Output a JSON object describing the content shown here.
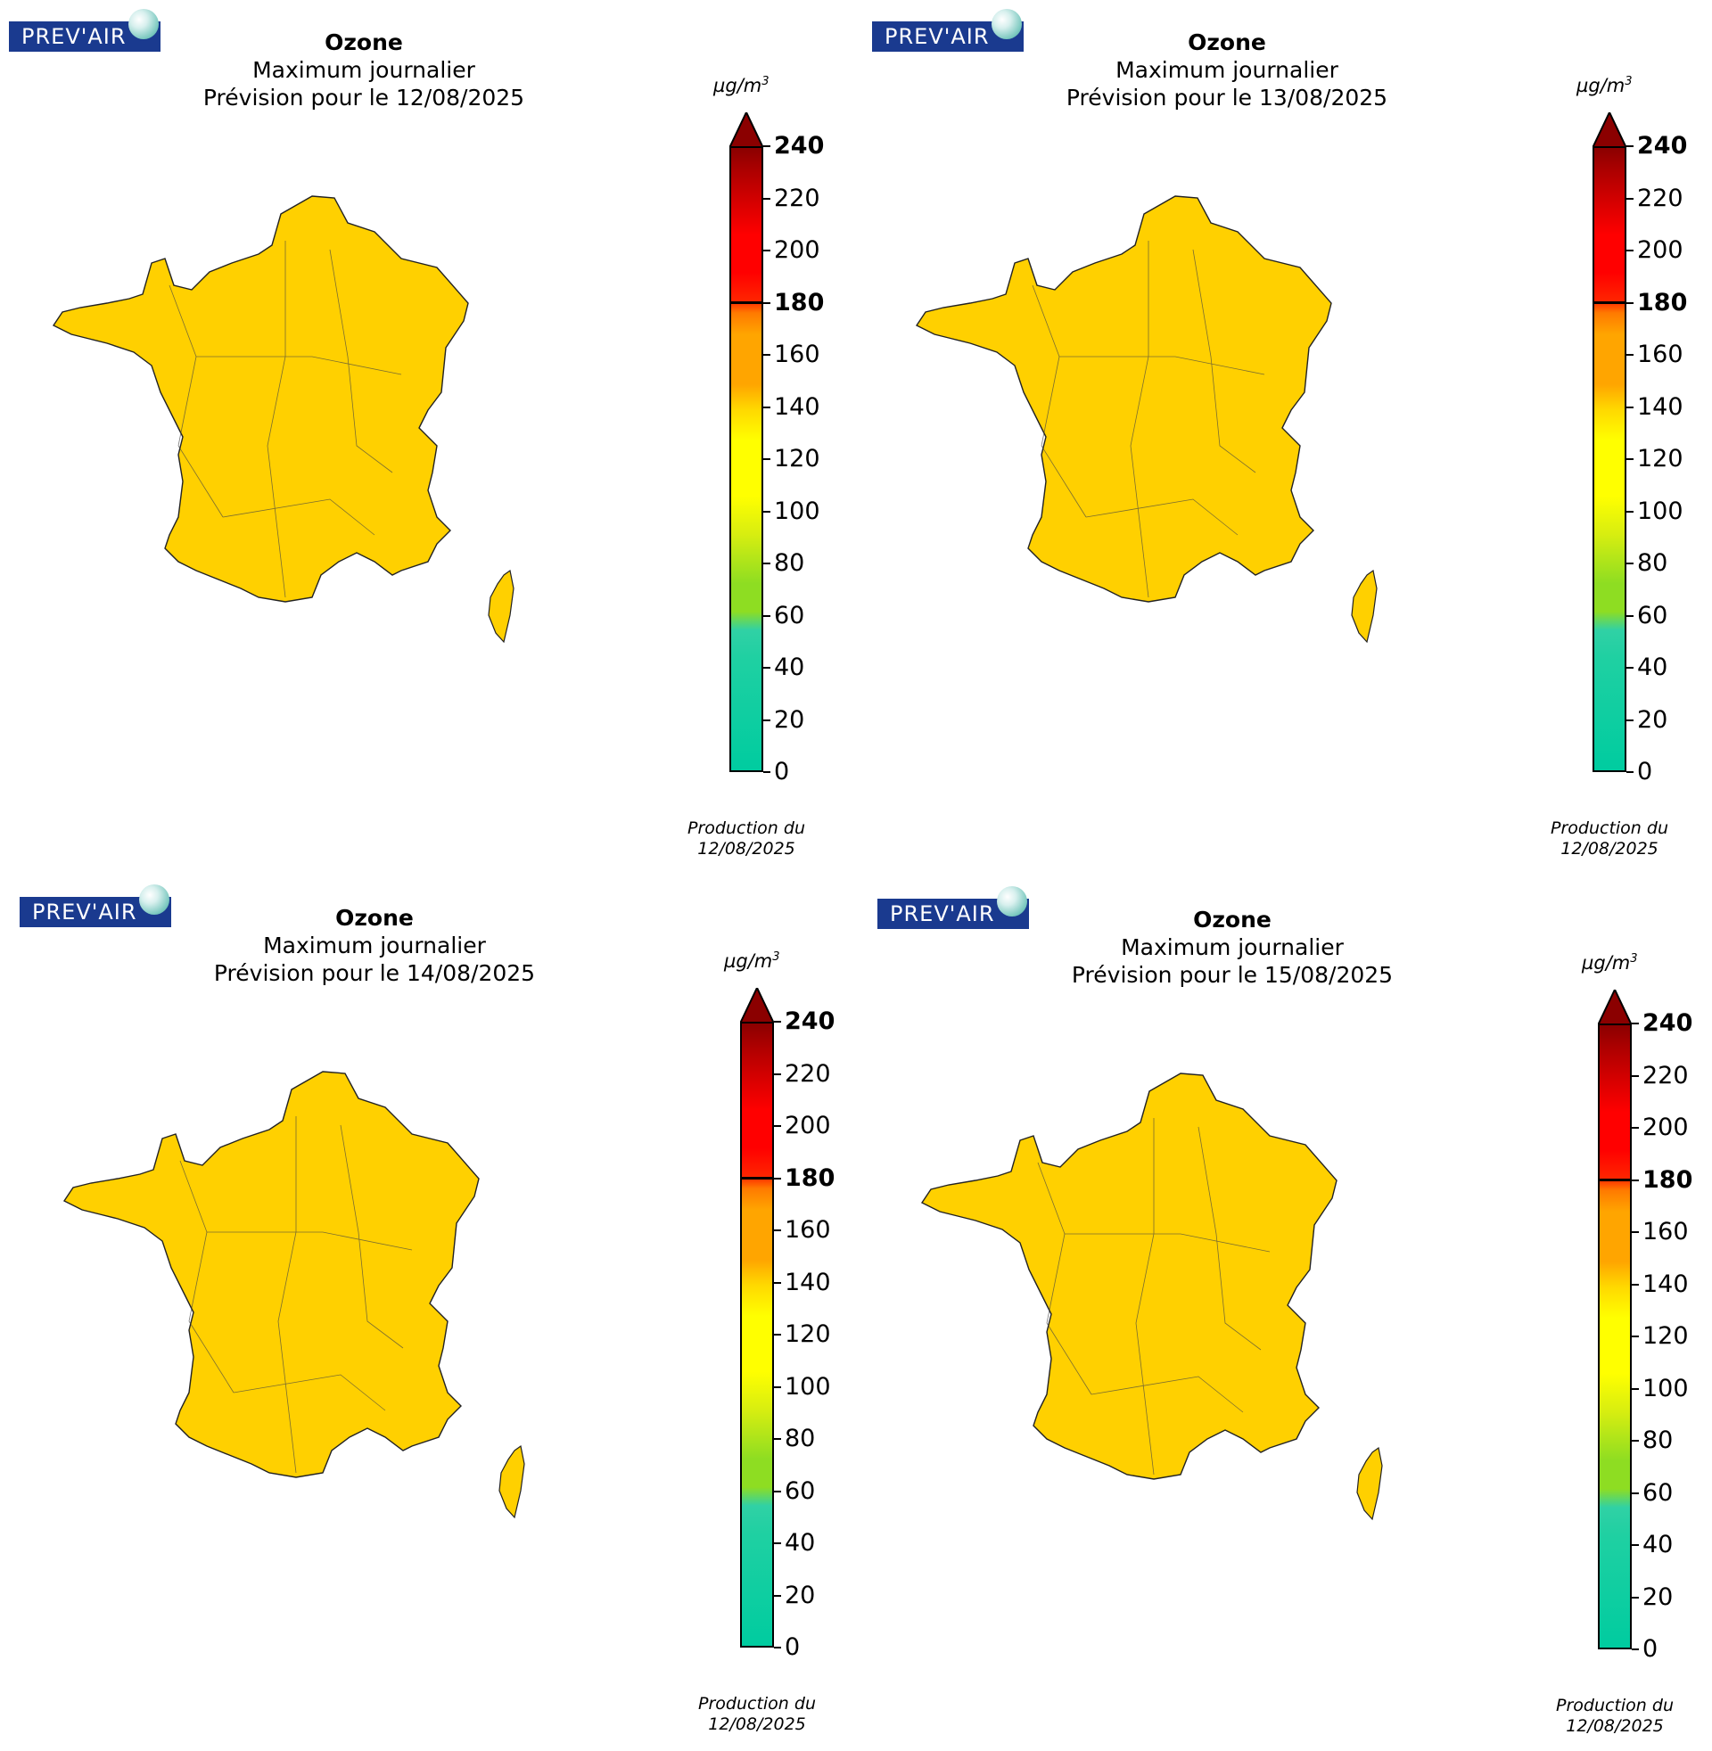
{
  "legend_ticks": [
    "0",
    "20",
    "40",
    "60",
    "80",
    "100",
    "120",
    "140",
    "160",
    "180",
    "200",
    "220",
    "240"
  ],
  "legend_unit": "µg/m",
  "legend_unit_exp": "3",
  "logo_text": "PREV'AIR",
  "production_line1": "Production du",
  "colors": {
    "logo_bg": "#1a3a8f",
    "green": "#8edd22",
    "yellow": "#ffff00",
    "orange": "#ffa500",
    "red": "#ff0000",
    "teal": "#00cca0",
    "dark_red": "#8b0000"
  },
  "panels": [
    {
      "title": "Ozone",
      "subtitle": "Maximum journalier",
      "forecast": "Prévision pour le 12/08/2025",
      "production_date": "12/08/2025",
      "dominant_level": "orange-yellow"
    },
    {
      "title": "Ozone",
      "subtitle": "Maximum journalier",
      "forecast": "Prévision pour le 13/08/2025",
      "production_date": "12/08/2025",
      "dominant_level": "yellow-orange"
    },
    {
      "title": "Ozone",
      "subtitle": "Maximum journalier",
      "forecast": "Prévision pour le 14/08/2025",
      "production_date": "12/08/2025",
      "dominant_level": "yellow-green"
    },
    {
      "title": "Ozone",
      "subtitle": "Maximum journalier",
      "forecast": "Prévision pour le 15/08/2025",
      "production_date": "12/08/2025",
      "dominant_level": "yellow-orange"
    }
  ]
}
